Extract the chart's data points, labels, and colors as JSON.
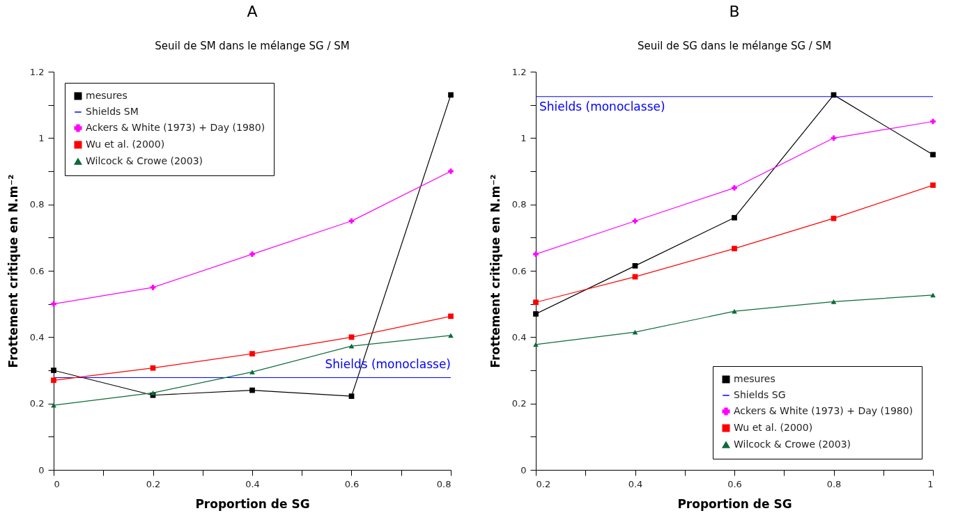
{
  "chart_data": [
    {
      "type": "line",
      "title": "A",
      "subtitle": "Seuil de SM dans le mélange SG / SM",
      "xlabel": "Proportion de SG",
      "ylabel": "Frottement critique en N.m⁻²",
      "x": [
        0,
        0.2,
        0.4,
        0.6,
        0.8
      ],
      "xlim": [
        0,
        0.8
      ],
      "xticks": [
        0,
        {
          "value": 0.1,
          "label": null
        },
        0.2,
        {
          "value": 0.3,
          "label": null
        },
        0.4,
        {
          "value": 0.5,
          "label": null
        },
        0.6,
        {
          "value": 0.7,
          "label": null
        },
        0.8
      ],
      "ylim": [
        0,
        1.2
      ],
      "yticks": [
        0,
        {
          "value": 0.1,
          "label": null
        },
        0.2,
        {
          "value": 0.3,
          "label": null
        },
        0.4,
        {
          "value": 0.5,
          "label": null
        },
        0.6,
        {
          "value": 0.7,
          "label": null
        },
        0.8,
        {
          "value": 0.9,
          "label": null
        },
        1,
        {
          "value": 1.1,
          "label": null
        },
        1.2
      ],
      "grid": false,
      "legend": "top left",
      "series": [
        {
          "name": "mesures",
          "color": "#000000",
          "marker": "square",
          "values": [
            0.3,
            0.225,
            0.24,
            0.222,
            1.13
          ]
        },
        {
          "name": "Shields SM",
          "color": "#0000ff",
          "marker": "none",
          "values": [
            0.278,
            0.278,
            0.278,
            0.278,
            0.278
          ]
        },
        {
          "name": "Ackers & White (1973) + Day (1980)",
          "color": "#ff00ff",
          "marker": "cross",
          "values": [
            0.5,
            0.55,
            0.65,
            0.75,
            0.9
          ]
        },
        {
          "name": "Wu et al. (2000)",
          "color": "#ff0000",
          "marker": "square",
          "values": [
            0.27,
            0.307,
            0.35,
            0.4,
            0.463
          ]
        },
        {
          "name": "Wilcock & Crowe (2003)",
          "color": "#0b6b3a",
          "marker": "triangle",
          "values": [
            0.195,
            0.232,
            0.295,
            0.373,
            0.405
          ]
        }
      ],
      "annotations": [
        {
          "text": "Shields (monoclasse)",
          "x": 0.8,
          "y": 0.278
        }
      ]
    },
    {
      "type": "line",
      "title": "B",
      "subtitle": "Seuil de SG dans le mélange SG / SM",
      "xlabel": "Proportion de SG",
      "ylabel": "Frottement critique en N.m⁻²",
      "x": [
        0.2,
        0.4,
        0.6,
        0.8,
        1
      ],
      "xlim": [
        0.2,
        1
      ],
      "xticks": [
        0.2,
        {
          "value": 0.3,
          "label": null
        },
        0.4,
        {
          "value": 0.5,
          "label": null
        },
        0.6,
        {
          "value": 0.7,
          "label": null
        },
        0.8,
        {
          "value": 0.9,
          "label": null
        },
        1
      ],
      "ylim": [
        0,
        1.2
      ],
      "yticks": [
        0,
        {
          "value": 0.1,
          "label": null
        },
        0.2,
        {
          "value": 0.3,
          "label": null
        },
        0.4,
        {
          "value": 0.5,
          "label": null
        },
        0.6,
        {
          "value": 0.7,
          "label": null
        },
        0.8,
        {
          "value": 0.9,
          "label": null
        },
        1,
        {
          "value": 1.1,
          "label": null
        },
        1.2
      ],
      "grid": false,
      "legend": "bottom right",
      "series": [
        {
          "name": "mesures",
          "color": "#000000",
          "marker": "square",
          "values": [
            0.47,
            0.615,
            0.76,
            1.13,
            0.95
          ]
        },
        {
          "name": "Shields SG",
          "color": "#0000ff",
          "marker": "none",
          "values": [
            1.125,
            1.125,
            1.125,
            1.125,
            1.125
          ]
        },
        {
          "name": "Ackers & White (1973) + Day (1980)",
          "color": "#ff00ff",
          "marker": "cross",
          "values": [
            0.65,
            0.75,
            0.85,
            1,
            1.05
          ]
        },
        {
          "name": "Wu et al. (2000)",
          "color": "#ff0000",
          "marker": "square",
          "values": [
            0.505,
            0.582,
            0.667,
            0.758,
            0.858
          ]
        },
        {
          "name": "Wilcock & Crowe (2003)",
          "color": "#0b6b3a",
          "marker": "triangle",
          "values": [
            0.378,
            0.415,
            0.478,
            0.507,
            0.527
          ]
        }
      ],
      "annotations": [
        {
          "text": "Shields (monoclasse)",
          "x": 0.2,
          "y": 1.125
        }
      ]
    }
  ]
}
